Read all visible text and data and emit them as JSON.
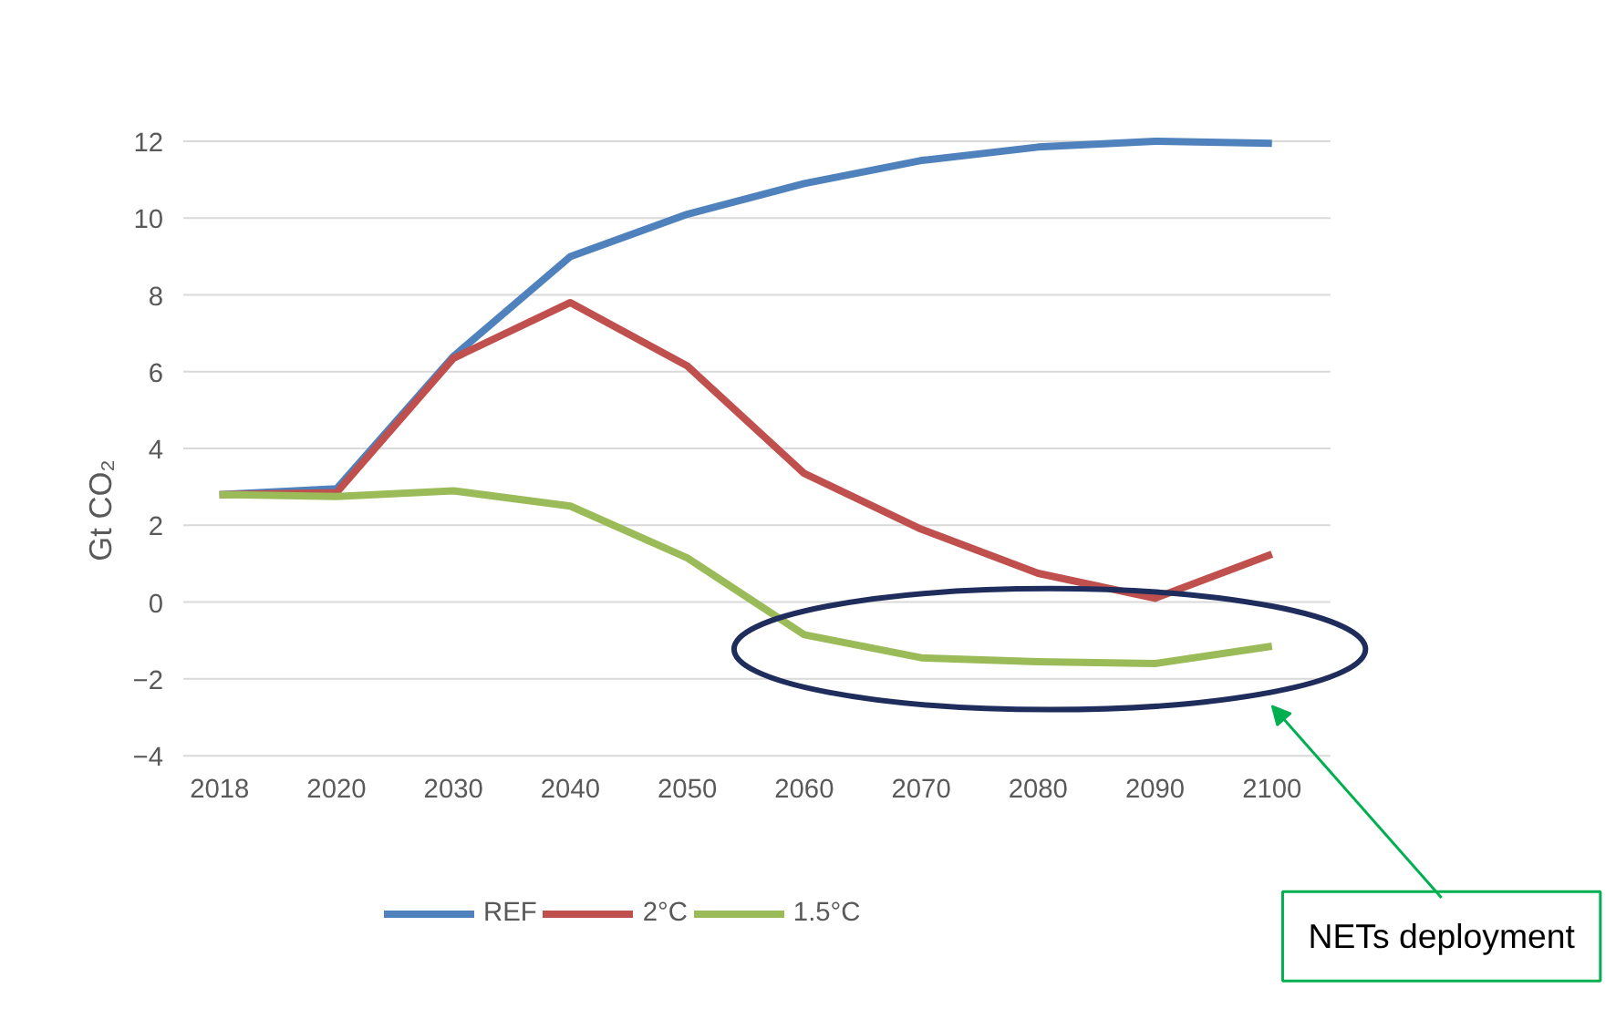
{
  "chart_data": {
    "type": "line",
    "ylabel": "Gt CO₂",
    "categories": [
      "2018",
      "2020",
      "2030",
      "2040",
      "2050",
      "2060",
      "2070",
      "2080",
      "2090",
      "2100"
    ],
    "series": [
      {
        "name": "REF",
        "color": "#4f81bd",
        "values": [
          2.8,
          2.95,
          6.4,
          9.0,
          10.1,
          10.9,
          11.5,
          11.85,
          12.0,
          11.95
        ]
      },
      {
        "name": "2°C",
        "color": "#c0504d",
        "values": [
          2.8,
          2.85,
          6.35,
          7.8,
          6.15,
          3.35,
          1.9,
          0.75,
          0.1,
          1.25
        ]
      },
      {
        "name": "1.5°C",
        "color": "#9bbb59",
        "values": [
          2.8,
          2.75,
          2.9,
          2.5,
          1.15,
          -0.85,
          -1.45,
          -1.55,
          -1.6,
          -1.15
        ]
      }
    ],
    "ylim": [
      -4,
      12
    ],
    "yticks": [
      -4,
      -2,
      0,
      2,
      4,
      6,
      8,
      10,
      12
    ],
    "grid": "y",
    "legend": "bottom",
    "marker": "none",
    "line_style": "solid",
    "annotations": [
      "NETs deployment"
    ]
  }
}
